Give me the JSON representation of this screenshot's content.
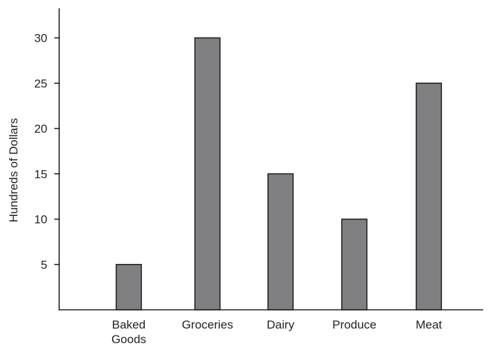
{
  "chart_data": {
    "type": "bar",
    "title": "",
    "xlabel": "",
    "ylabel": "Hundreds of Dollars",
    "categories": [
      [
        "Baked",
        "Goods"
      ],
      [
        "Groceries"
      ],
      [
        "Dairy"
      ],
      [
        "Produce"
      ],
      [
        "Meat"
      ]
    ],
    "values": [
      5,
      30,
      15,
      10,
      25
    ],
    "y_ticks": [
      5,
      10,
      15,
      20,
      25,
      30
    ],
    "ylim": [
      0,
      35
    ],
    "grid": false,
    "legend": "none",
    "colors": {
      "bar_fill": "#808083",
      "axis": "#231f20",
      "text": "#231f20"
    }
  }
}
